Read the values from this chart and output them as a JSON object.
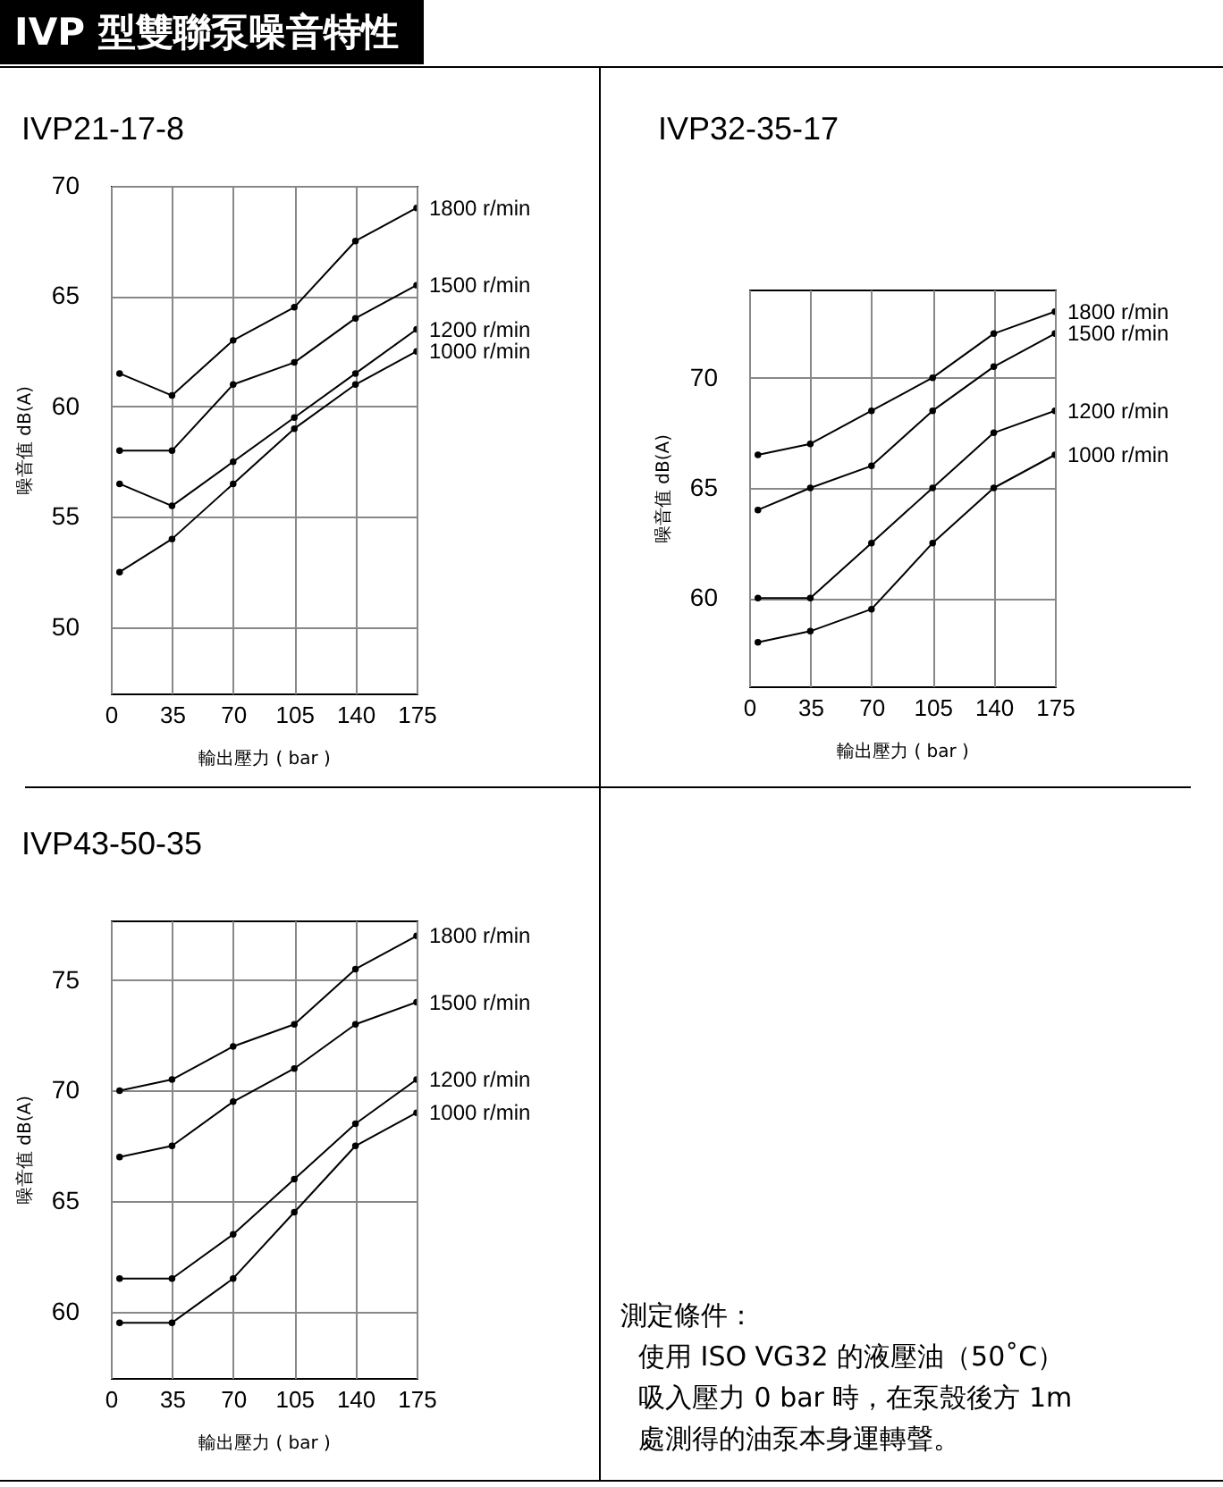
{
  "chart_data": [
    {
      "type": "line",
      "title": "IVP 型雙聯泵噪音特性",
      "subtitle": "IVP21-17-8",
      "xlabel": "輸出壓力 ( bar )",
      "ylabel": "噪音值 dB(A)",
      "x": [
        5,
        35,
        70,
        105,
        140,
        175
      ],
      "xlim": [
        0,
        175
      ],
      "xticks": [
        0,
        35,
        70,
        105,
        140,
        175
      ],
      "ylim": [
        47,
        70
      ],
      "yticks": [
        50,
        55,
        60,
        65,
        70
      ],
      "grid": true,
      "legend": false,
      "marker": "circle",
      "line_style": "solid",
      "series": [
        {
          "name": "1800 r/min",
          "color": "#000000",
          "values": [
            61.5,
            60.5,
            63,
            64.5,
            67.5,
            69
          ]
        },
        {
          "name": "1500 r/min",
          "color": "#000000",
          "values": [
            58,
            58,
            61,
            62,
            64,
            65.5
          ]
        },
        {
          "name": "1200 r/min",
          "color": "#000000",
          "values": [
            56.5,
            55.5,
            57.5,
            59.5,
            61.5,
            63.5
          ]
        },
        {
          "name": "1000 r/min",
          "color": "#000000",
          "values": [
            52.5,
            54,
            56.5,
            59,
            61,
            62.5
          ]
        }
      ]
    },
    {
      "type": "line",
      "title": "IVP32-35-17",
      "xlabel": "輸出壓力 ( bar )",
      "ylabel": "噪音值 dB(A)",
      "x": [
        5,
        35,
        70,
        105,
        140,
        175
      ],
      "xlim": [
        0,
        175
      ],
      "xticks": [
        0,
        35,
        70,
        105,
        140,
        175
      ],
      "ylim": [
        56,
        74
      ],
      "yticks": [
        60,
        65,
        70
      ],
      "grid": true,
      "legend": false,
      "marker": "circle",
      "line_style": "solid",
      "series": [
        {
          "name": "1800 r/min",
          "color": "#000000",
          "values": [
            66.5,
            67,
            68.5,
            70,
            72,
            73
          ]
        },
        {
          "name": "1500 r/min",
          "color": "#000000",
          "values": [
            64,
            65,
            66,
            68.5,
            70.5,
            72
          ]
        },
        {
          "name": "1200 r/min",
          "color": "#000000",
          "values": [
            60,
            60,
            62.5,
            65,
            67.5,
            68.5
          ]
        },
        {
          "name": "1000 r/min",
          "color": "#000000",
          "values": [
            58,
            58.5,
            59.5,
            62.5,
            65,
            66.5
          ]
        }
      ]
    },
    {
      "type": "line",
      "title": "IVP43-50-35",
      "xlabel": "輸出壓力 ( bar )",
      "ylabel": "噪音值 dB(A)",
      "x": [
        5,
        35,
        70,
        105,
        140,
        175
      ],
      "xlim": [
        0,
        175
      ],
      "xticks": [
        0,
        35,
        70,
        105,
        140,
        175
      ],
      "ylim": [
        57,
        77.7
      ],
      "yticks": [
        60,
        65,
        70,
        75
      ],
      "grid": true,
      "legend": false,
      "marker": "circle",
      "line_style": "solid",
      "series": [
        {
          "name": "1800 r/min",
          "color": "#000000",
          "values": [
            70,
            70.5,
            72,
            73,
            75.5,
            77
          ]
        },
        {
          "name": "1500 r/min",
          "color": "#000000",
          "values": [
            67,
            67.5,
            69.5,
            71,
            73,
            74
          ]
        },
        {
          "name": "1200 r/min",
          "color": "#000000",
          "values": [
            61.5,
            61.5,
            63.5,
            66,
            68.5,
            70.5
          ]
        },
        {
          "name": "1000 r/min",
          "color": "#000000",
          "values": [
            59.5,
            59.5,
            61.5,
            64.5,
            67.5,
            69
          ]
        }
      ]
    },
    {
      "type": "other",
      "annotations": [
        "測定條件：",
        "使用 ISO VG32 的液壓油（50˚C）",
        "吸入壓力 0 bar 時，在泵殼後方 1m",
        "處測得的油泵本身運轉聲。"
      ]
    }
  ]
}
